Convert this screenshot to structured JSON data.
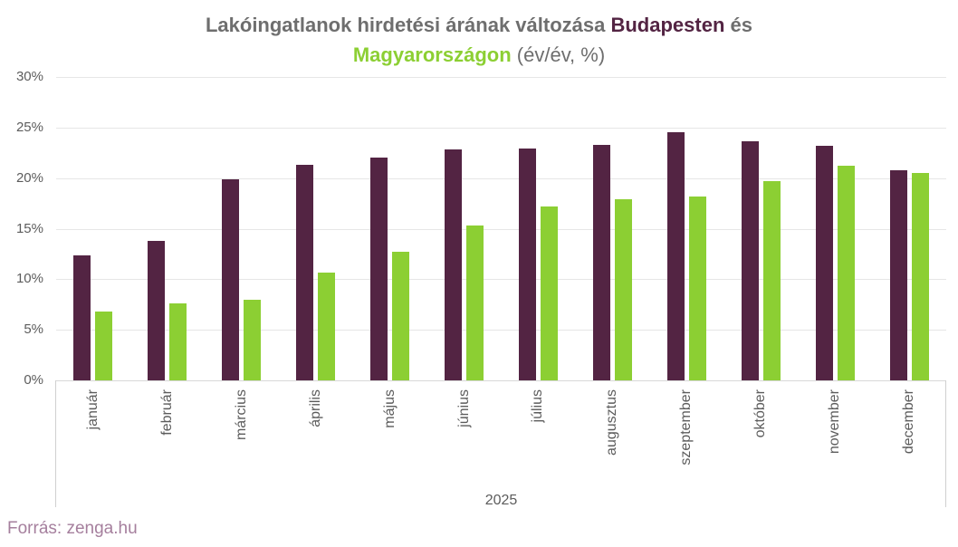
{
  "title": {
    "line1": {
      "text_gray": "Lakóingatlanok hirdetési árának változása",
      "text_budapest": "Budapesten",
      "text_and": "és"
    },
    "line2": {
      "text_hungary": "Magyarországon",
      "text_units": "(év/év, %)"
    }
  },
  "source": "Forrás: zenga.hu",
  "chart_data": {
    "type": "bar",
    "title": "Lakóingatlanok hirdetési árának változása Budapesten és Magyarországon (év/év, %)",
    "categories": [
      "január",
      "február",
      "március",
      "április",
      "május",
      "június",
      "július",
      "augusztus",
      "szeptember",
      "október",
      "november",
      "december"
    ],
    "series": [
      {
        "name": "Budapesten",
        "color": "#532443",
        "values": [
          12.4,
          13.8,
          19.9,
          21.3,
          22.0,
          22.8,
          22.9,
          23.3,
          24.5,
          23.6,
          23.2,
          20.8
        ]
      },
      {
        "name": "Magyarországon",
        "color": "#8ccf33",
        "values": [
          6.8,
          7.6,
          8.0,
          10.7,
          12.7,
          15.3,
          17.2,
          17.9,
          18.2,
          19.7,
          21.2,
          20.5
        ]
      }
    ],
    "ylim": [
      0,
      30
    ],
    "y_ticks": [
      0,
      5,
      10,
      15,
      20,
      25,
      30
    ],
    "y_tick_format": "{v}%",
    "year_label": "2025",
    "grid": true,
    "legend": "none",
    "x_label_rotation": "vertical"
  },
  "colors": {
    "budapest": "#532443",
    "hungary": "#8ccf33",
    "title_gray": "#6e6e6e",
    "axis_text": "#5c5c5c",
    "gridline": "#e6e6e6",
    "source_text": "#a57f9d"
  }
}
